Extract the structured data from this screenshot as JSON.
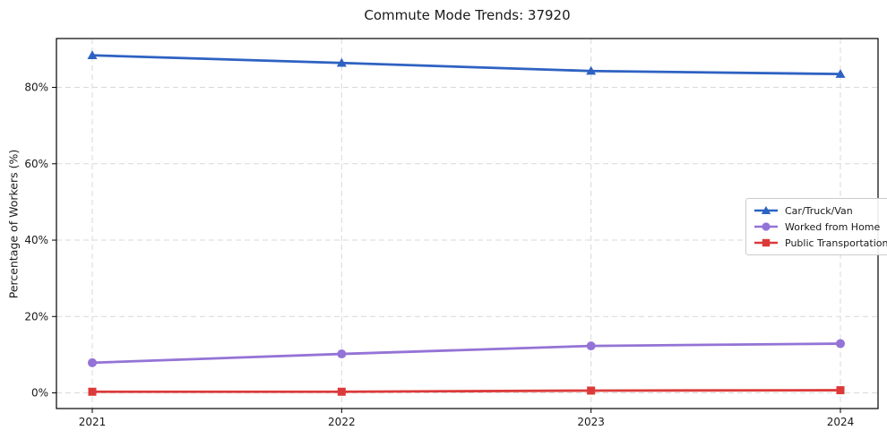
{
  "title": "Commute Mode Trends: 37920",
  "chart_data": {
    "type": "line",
    "title": "Commute Mode Trends: 37920",
    "xlabel": "",
    "ylabel": "Percentage of Workers (%)",
    "x": [
      "2021",
      "2022",
      "2023",
      "2024"
    ],
    "y_axis": {
      "ticks": [
        0,
        20,
        40,
        60,
        80
      ],
      "tick_suffix": "%",
      "min": -4.1,
      "max": 92.8
    },
    "grid": true,
    "grid_style": "dashed",
    "legend_position": "center right",
    "series": [
      {
        "name": "Car/Truck/Van",
        "marker": "triangle",
        "color": "#2e62c2",
        "values": [
          88.4,
          86.4,
          84.3,
          83.5
        ]
      },
      {
        "name": "Worked from Home",
        "marker": "circle",
        "color": "#9473d6",
        "values": [
          7.9,
          10.2,
          12.3,
          12.9
        ]
      },
      {
        "name": "Public Transportation",
        "marker": "square",
        "color": "#dc3a3a",
        "values": [
          0.3,
          0.3,
          0.6,
          0.7
        ]
      }
    ]
  },
  "colors": {
    "background": "#ffffff",
    "grid": "#d9d9d9",
    "frame": "#000000",
    "text": "#1a1a1a",
    "legend_border": "#cccccc"
  }
}
